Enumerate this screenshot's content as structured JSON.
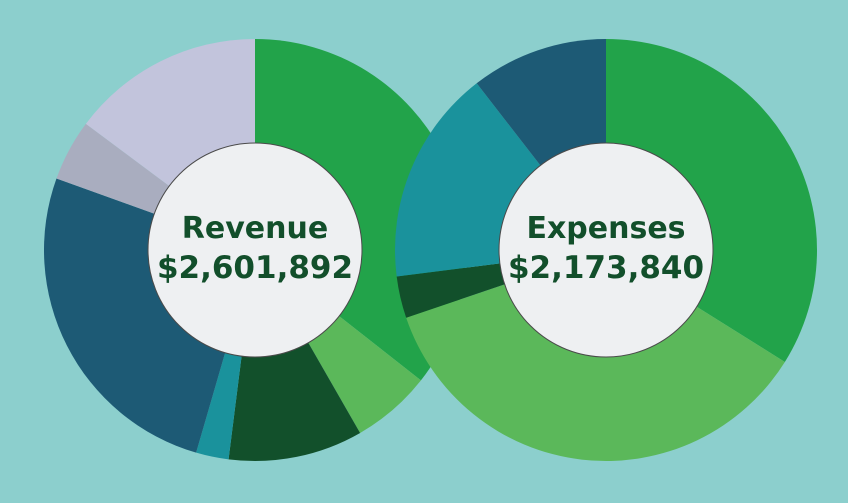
{
  "chart_data": [
    {
      "type": "pie",
      "title": "Revenue",
      "total_label": "$2,601,892",
      "slices": [
        {
          "value": 0.356,
          "color": "#22a34a"
        },
        {
          "value": 0.061,
          "color": "#5bb85a"
        },
        {
          "value": 0.103,
          "color": "#12502b"
        },
        {
          "value": 0.025,
          "color": "#1a929c"
        },
        {
          "value": 0.26,
          "color": "#1d5a75"
        },
        {
          "value": 0.047,
          "color": "#a9adbf"
        },
        {
          "value": 0.148,
          "color": "#c2c4dc"
        }
      ]
    },
    {
      "type": "pie",
      "title": "Expenses",
      "total_label": "$2,173,840",
      "slices": [
        {
          "value": 0.339,
          "color": "#22a34a"
        },
        {
          "value": 0.359,
          "color": "#5bb85a"
        },
        {
          "value": 0.032,
          "color": "#12502b"
        },
        {
          "value": 0.165,
          "color": "#1a929c"
        },
        {
          "value": 0.105,
          "color": "#1d5a75"
        }
      ]
    }
  ],
  "colors": {
    "background": "#8ccfcd",
    "center_fill": "#eef0f2",
    "center_text": "#124f2b"
  }
}
